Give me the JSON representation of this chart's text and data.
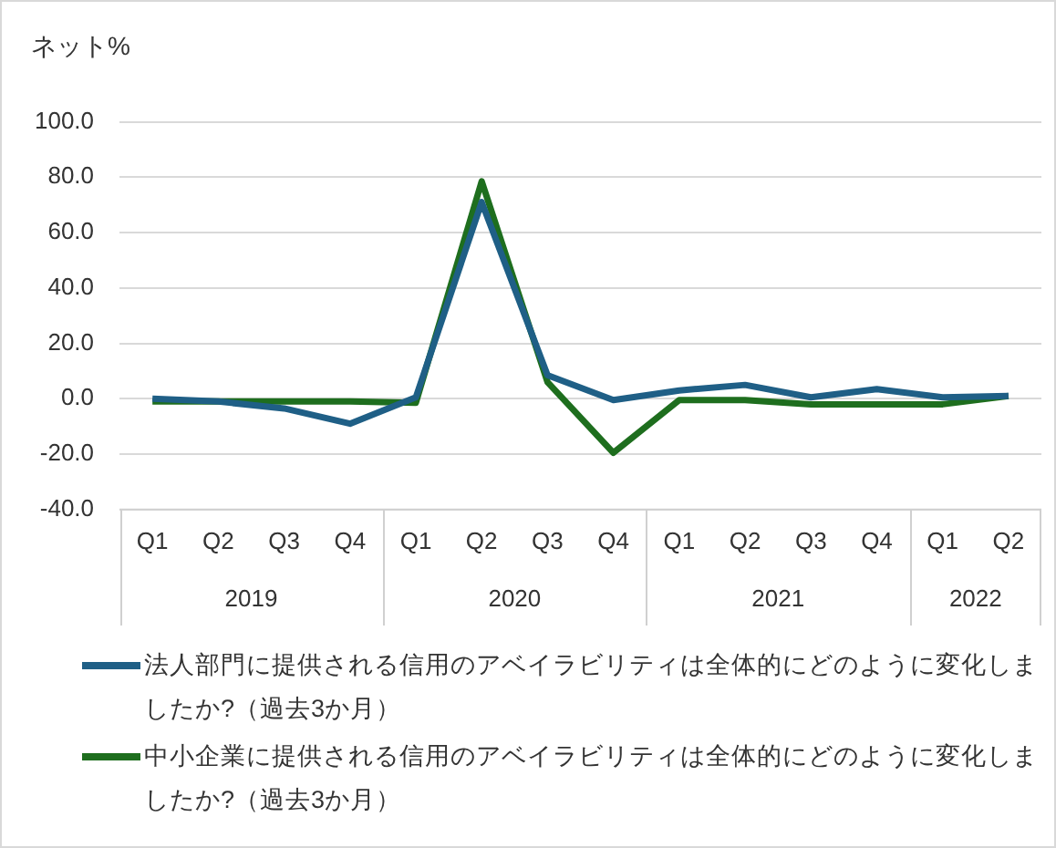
{
  "chart_data": {
    "type": "line",
    "ylabel": "ネット%",
    "categories": [
      "Q1",
      "Q2",
      "Q3",
      "Q4",
      "Q1",
      "Q2",
      "Q3",
      "Q4",
      "Q1",
      "Q2",
      "Q3",
      "Q4",
      "Q1",
      "Q2"
    ],
    "annotations": [
      "2019",
      "2020",
      "2021",
      "2022"
    ],
    "series": [
      {
        "name": "法人部門に提供される信用のアベイラビリティは全体的にどのように変化しましたか?（過去3か月）",
        "color": "#1f5f86",
        "values": [
          0,
          -1,
          -3.5,
          -9,
          0.5,
          71,
          8.5,
          -0.5,
          3,
          5,
          0.5,
          3.5,
          0.5,
          1
        ]
      },
      {
        "name": "中小企業に提供される信用のアベイラビリティは全体的にどのように変化しましたか?（過去3か月）",
        "color": "#1e6e1e",
        "values": [
          -1,
          -1,
          -1,
          -1,
          -1.5,
          78.5,
          6,
          -19.5,
          -0.5,
          -0.5,
          -2,
          -2,
          -2,
          1
        ]
      }
    ],
    "ylim": [
      -40,
      100
    ],
    "yticks": [
      {
        "value": -40,
        "label": "-40.0"
      },
      {
        "value": -20,
        "label": "-20.0"
      },
      {
        "value": 0,
        "label": "0.0"
      },
      {
        "value": 20,
        "label": "20.0"
      },
      {
        "value": 40,
        "label": "40.0"
      },
      {
        "value": 60,
        "label": "60.0"
      },
      {
        "value": 80,
        "label": "80.0"
      },
      {
        "value": 100,
        "label": "100.0"
      }
    ],
    "grid": "y",
    "legend": "bottom",
    "marker": "none",
    "line_style": "solid"
  }
}
